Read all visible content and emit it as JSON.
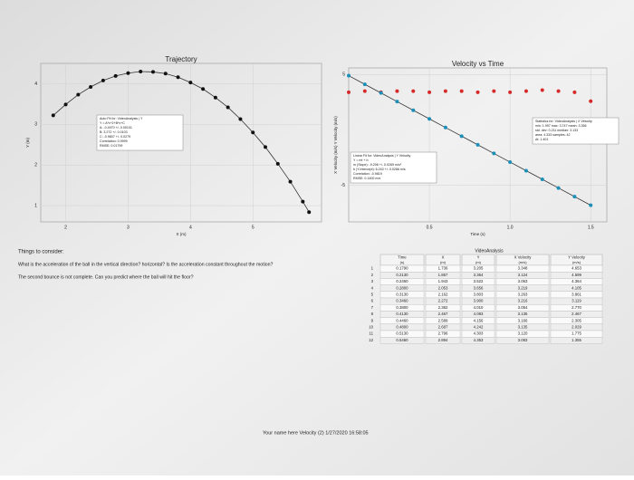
{
  "chart_data": [
    {
      "type": "scatter",
      "title": "Trajectory",
      "x_label": "X (m)",
      "y_label": "Y (m)",
      "color": "#111111",
      "x": [
        1.8,
        2.0,
        2.2,
        2.4,
        2.6,
        2.8,
        3.0,
        3.2,
        3.4,
        3.6,
        3.8,
        4.0,
        4.2,
        4.4,
        4.6,
        4.8,
        5.0,
        5.2,
        5.4,
        5.6,
        5.8,
        5.9
      ],
      "series": [
        {
          "color": "#111111",
          "fit_line": true,
          "values": [
            3.22,
            3.49,
            3.73,
            3.92,
            4.08,
            4.19,
            4.26,
            4.3,
            4.29,
            4.25,
            4.16,
            4.03,
            3.87,
            3.66,
            3.42,
            3.13,
            2.8,
            2.44,
            2.03,
            1.59,
            1.1,
            0.84
          ]
        }
      ],
      "xlim": [
        1.6,
        6.1
      ],
      "xticks": [
        2,
        3,
        4,
        5
      ],
      "ylim": [
        0.6,
        4.5
      ],
      "yticks": [
        1,
        2,
        3,
        4
      ],
      "fit_box": [
        "Auto Fit for: VideoAnalysis | Y",
        "Y = A*x^2+B*x+C",
        "A: -0.4970 +/- 0.00101",
        "B: 3.272 +/- 0.0103",
        "C: -0.9807 +/- 0.0279",
        "Correlation: 0.9999",
        "RMSE: 0.01799"
      ]
    },
    {
      "type": "scatter",
      "title": "Velocity vs Time",
      "x_label": "Time (s)",
      "y_label": "X Velocity (m/s)  Y Velocity (m/s)",
      "x": [
        0,
        0.1,
        0.2,
        0.3,
        0.4,
        0.5,
        0.6,
        0.7,
        0.8,
        0.9,
        1.0,
        1.1,
        1.2,
        1.3,
        1.4,
        1.5
      ],
      "series": [
        {
          "color": "#d62a2a",
          "fit_line": false,
          "values": [
            3.4,
            3.5,
            3.4,
            3.5,
            3.5,
            3.4,
            3.5,
            3.5,
            3.4,
            3.5,
            3.4,
            3.5,
            3.6,
            3.5,
            3.4,
            2.6
          ]
        },
        {
          "color": "#1b8fb8",
          "fit_line": true,
          "values": [
            4.9,
            4.12,
            3.34,
            2.56,
            1.78,
            1.0,
            0.22,
            -0.56,
            -1.34,
            -2.12,
            -2.9,
            -3.68,
            -4.46,
            -5.24,
            -6.02,
            -6.8
          ]
        }
      ],
      "xlim": [
        0,
        1.6
      ],
      "xticks": [
        0.5,
        {
          "value": 1,
          "label": "1.0"
        },
        1.5
      ],
      "ylim": [
        -8.3,
        5.6
      ],
      "yticks": [
        -5,
        5
      ],
      "fit_box": [
        "Linear Fit for: VideoAnalysis | Y Velocity",
        "Y = mt + b",
        "m (Slope): -9.206 +/- 0.0269 m/s²",
        "b (Y-Intercept): 6.243 +/- 0.0286 m/s",
        "Correlation: -0.9819",
        "RMSE: 0.1400 m/s"
      ],
      "fit_box2": [
        "Statistics for: VideoAnalysis | X Velocity",
        "min: 1.997  max: 3.747  mean: 3.356",
        "std. dev: 0.211  median: 3.133",
        "area: 4.333  samples: 42",
        "Δt: 1.401"
      ]
    }
  ],
  "questions": {
    "heading": "Things to consider:",
    "q1": "What is the acceleration of the ball in the vertical direction? horizontal? Is the acceleration constant throughout the motion?",
    "q2": "The second bounce is not complete. Can you predict where the ball will hit the floor?"
  },
  "table": {
    "group": "VideoAnalysis",
    "columns": [
      "Time",
      "X",
      "Y",
      "X Velocity",
      "Y Velocity"
    ],
    "units": [
      "(s)",
      "(m)",
      "(m)",
      "(m/s)",
      "(m/s)"
    ],
    "row_numbers": [
      "1",
      "2",
      "3",
      "4",
      "5",
      "6",
      "7",
      "8",
      "9",
      "10",
      "11",
      "12"
    ],
    "rows": [
      [
        "0.1790",
        "1.736",
        "3.205",
        "3.348",
        "4.653"
      ],
      [
        "0.2130",
        "1.857",
        "3.364",
        "3.124",
        "4.599"
      ],
      [
        "0.2460",
        "1.943",
        "3.522",
        "3.063",
        "4.364"
      ],
      [
        "0.2800",
        "2.053",
        "3.656",
        "3.219",
        "4.105"
      ],
      [
        "0.3130",
        "2.162",
        "3.803",
        "3.263",
        "3.861"
      ],
      [
        "0.3460",
        "2.272",
        "3.900",
        "3.216",
        "3.119"
      ],
      [
        "0.3800",
        "2.382",
        "4.010",
        "3.054",
        "2.770"
      ],
      [
        "0.4130",
        "2.467",
        "4.083",
        "3.135",
        "2.467"
      ],
      [
        "0.4460",
        "2.589",
        "4.156",
        "3.166",
        "2.305"
      ],
      [
        "0.4800",
        "2.687",
        "4.242",
        "3.135",
        "2.029"
      ],
      [
        "0.5130",
        "2.796",
        "4.303",
        "3.120",
        "1.775"
      ],
      [
        "0.5460",
        "2.894",
        "4.353",
        "3.083",
        "1.355"
      ]
    ]
  },
  "footer": "Your name here   Velocity (2)   1/27/2020 16:58:05"
}
